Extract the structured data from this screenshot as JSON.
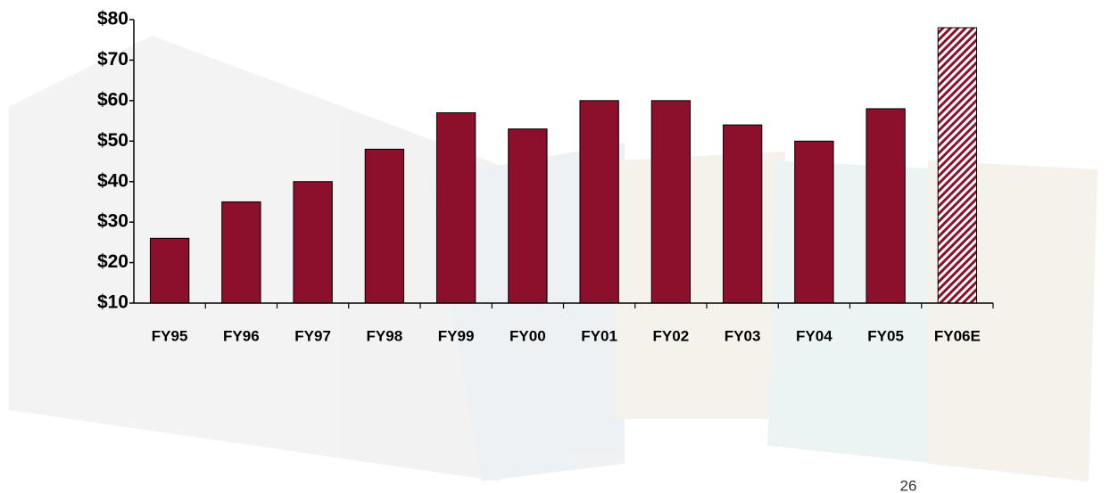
{
  "chart_data": {
    "type": "bar",
    "categories": [
      "FY95",
      "FY96",
      "FY97",
      "FY98",
      "FY99",
      "FY00",
      "FY01",
      "FY02",
      "FY03",
      "FY04",
      "FY05",
      "FY06E"
    ],
    "values": [
      26,
      35,
      40,
      48,
      57,
      53,
      60,
      60,
      54,
      50,
      58,
      78
    ],
    "bar_styles": [
      "solid",
      "solid",
      "solid",
      "solid",
      "solid",
      "solid",
      "solid",
      "solid",
      "solid",
      "solid",
      "solid",
      "hatched"
    ],
    "color": "#8c0f2b",
    "ylim": [
      10,
      80
    ],
    "yticks": [
      {
        "value": 10,
        "label": "$10"
      },
      {
        "value": 20,
        "label": "$20"
      },
      {
        "value": 30,
        "label": "$30"
      },
      {
        "value": 40,
        "label": "$40"
      },
      {
        "value": 50,
        "label": "$50"
      },
      {
        "value": 60,
        "label": "$60"
      },
      {
        "value": 70,
        "label": "$70"
      },
      {
        "value": 80,
        "label": "$80"
      }
    ],
    "grid": false
  },
  "page_number": "26"
}
